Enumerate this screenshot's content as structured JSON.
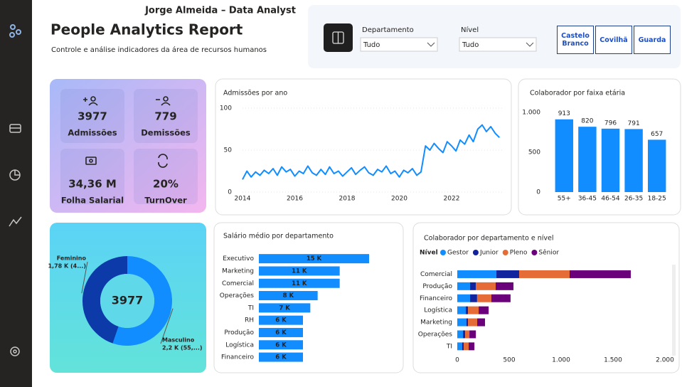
{
  "header": {
    "author": "Jorge Almeida – Data Analyst",
    "title": "People Analytics Report",
    "subtitle": "Controle e análise indicadores da área de recursos humanos"
  },
  "filters": [
    {
      "label": "Departamento",
      "value": "Tudo"
    },
    {
      "label": "Nível",
      "value": "Tudo"
    }
  ],
  "buttons": [
    "Castelo Branco",
    "Covilhã",
    "Guarda"
  ],
  "kpis": [
    {
      "value": "3977",
      "label": "Admissões"
    },
    {
      "value": "779",
      "label": "Demissões"
    },
    {
      "value": "34,36 M",
      "label": "Folha Salarial"
    },
    {
      "value": "20%",
      "label": "TurnOver"
    }
  ],
  "chart_data": [
    {
      "type": "line",
      "title": "Admissões por ano",
      "color": "#118dff",
      "grid": true,
      "x": [
        2014,
        2014.17,
        2014.33,
        2014.5,
        2014.67,
        2014.83,
        2015,
        2015.17,
        2015.33,
        2015.5,
        2015.67,
        2015.83,
        2016,
        2016.17,
        2016.33,
        2016.5,
        2016.67,
        2016.83,
        2017,
        2017.17,
        2017.33,
        2017.5,
        2017.67,
        2017.83,
        2018,
        2018.17,
        2018.33,
        2018.5,
        2018.67,
        2018.83,
        2019,
        2019.17,
        2019.33,
        2019.5,
        2019.67,
        2019.83,
        2020,
        2020.17,
        2020.33,
        2020.5,
        2020.67,
        2020.83,
        2021,
        2021.17,
        2021.33,
        2021.5,
        2021.67,
        2021.83,
        2022,
        2022.17,
        2022.33,
        2022.5,
        2022.67,
        2022.83,
        2023,
        2023.17,
        2023.33,
        2023.5,
        2023.67,
        2023.83
      ],
      "values": [
        15,
        25,
        18,
        24,
        20,
        26,
        22,
        28,
        20,
        30,
        24,
        27,
        19,
        25,
        22,
        31,
        23,
        20,
        27,
        21,
        30,
        22,
        25,
        19,
        24,
        29,
        21,
        26,
        30,
        23,
        20,
        27,
        24,
        31,
        22,
        25,
        18,
        26,
        23,
        28,
        20,
        24,
        55,
        50,
        58,
        52,
        47,
        60,
        55,
        49,
        62,
        57,
        68,
        60,
        75,
        80,
        72,
        78,
        70,
        65
      ],
      "xlim": [
        2014,
        2024
      ],
      "xticks": [
        2014,
        2016,
        2018,
        2020,
        2022
      ],
      "ylim": [
        0,
        100
      ],
      "yticks": [
        0,
        50,
        100
      ]
    },
    {
      "type": "bar",
      "title": "Colaborador por faixa etária",
      "color": "#118dff",
      "categories": [
        "55+",
        "36-45",
        "46-54",
        "26-35",
        "18-25"
      ],
      "values": [
        913,
        820,
        796,
        791,
        657
      ],
      "ylim": [
        0,
        1000
      ],
      "yticks": [
        0,
        500,
        {
          "value": 1000,
          "label": "1.000"
        }
      ]
    },
    {
      "type": "donut",
      "total": 3977,
      "categories": [
        "Masculino",
        "Feminino"
      ],
      "values": [
        2200,
        1780
      ],
      "value_labels": [
        "2,2 K (55,...)",
        "1,78 K (4...)"
      ],
      "colors": [
        "#118dff",
        "#0d3aa9"
      ]
    },
    {
      "type": "bar",
      "horizontal": true,
      "title": "Salário médio por departamento",
      "color": "#118dff",
      "categories": [
        "Executivo",
        "Marketing",
        "Comercial",
        "Operações",
        "TI",
        "RH",
        "Produção",
        "Logística",
        "Financeiro"
      ],
      "values": [
        15000,
        11000,
        11000,
        8000,
        7000,
        6000,
        6000,
        6000,
        6000
      ],
      "value_labels": [
        "15 K",
        "11 K",
        "11 K",
        "8 K",
        "7 K",
        "6 K",
        "6 K",
        "6 K",
        "6 K"
      ]
    },
    {
      "type": "bar",
      "horizontal": true,
      "stacked": true,
      "title": "Colaborador por departamento e nível",
      "legend_title": "Nível",
      "categories": [
        "Comercial",
        "Produção",
        "Financeiro",
        "Logística",
        "Marketing",
        "Operações",
        "TI"
      ],
      "series": [
        {
          "name": "Gestor",
          "color": "#118dff",
          "values": [
            377,
            123,
            123,
            82,
            89,
            55,
            48
          ]
        },
        {
          "name": "Junior",
          "color": "#12239e",
          "values": [
            219,
            55,
            68,
            21,
            14,
            21,
            14
          ]
        },
        {
          "name": "Pleno",
          "color": "#e66c37",
          "values": [
            486,
            192,
            137,
            103,
            89,
            41,
            48
          ]
        },
        {
          "name": "Sênior",
          "color": "#6b007b",
          "values": [
            589,
            171,
            185,
            96,
            75,
            62,
            55
          ]
        }
      ],
      "xlim": [
        0,
        2000
      ],
      "xticks": [
        0,
        500,
        {
          "value": 1000,
          "label": "1.000"
        },
        {
          "value": 1500,
          "label": "1.500"
        },
        {
          "value": 2000,
          "label": "2.000"
        }
      ]
    }
  ]
}
